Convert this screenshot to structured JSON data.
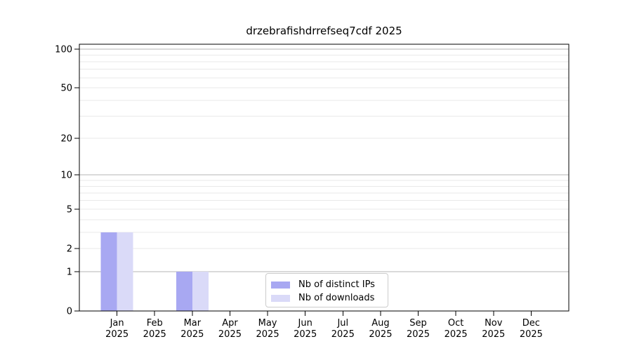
{
  "chart_data": {
    "type": "bar",
    "title": "drzebrafishdrrefseq7cdf 2025",
    "x": {
      "months": [
        "Jan",
        "Feb",
        "Mar",
        "Apr",
        "May",
        "Jun",
        "Jul",
        "Aug",
        "Sep",
        "Oct",
        "Nov",
        "Dec"
      ],
      "year": "2025"
    },
    "series": [
      {
        "name": "Nb of distinct IPs",
        "color": "#a8a8f2",
        "values": [
          3,
          0,
          1,
          0,
          0,
          0,
          0,
          0,
          0,
          0,
          0,
          0
        ]
      },
      {
        "name": "Nb of downloads",
        "color": "#dadaf8",
        "values": [
          3,
          0,
          1,
          0,
          0,
          0,
          0,
          0,
          0,
          0,
          0,
          0
        ]
      }
    ],
    "y_axis": {
      "scale": "log1p",
      "range": [
        0,
        100
      ],
      "ticks": [
        100,
        50,
        20,
        10,
        5,
        2,
        1,
        0
      ]
    },
    "grid": {
      "major_lines": [
        1,
        10,
        100
      ],
      "minor_lines": [
        2,
        3,
        4,
        5,
        6,
        7,
        8,
        9,
        20,
        30,
        40,
        50,
        60,
        70,
        80,
        90
      ]
    },
    "legend": {
      "position": "lower center"
    },
    "colors": {
      "grid_major": "#b4b4b4",
      "grid_minor": "#e9e9e9",
      "axis": "#000000",
      "text": "#000000",
      "legend_border": "#cccccc",
      "background": "#ffffff"
    }
  }
}
